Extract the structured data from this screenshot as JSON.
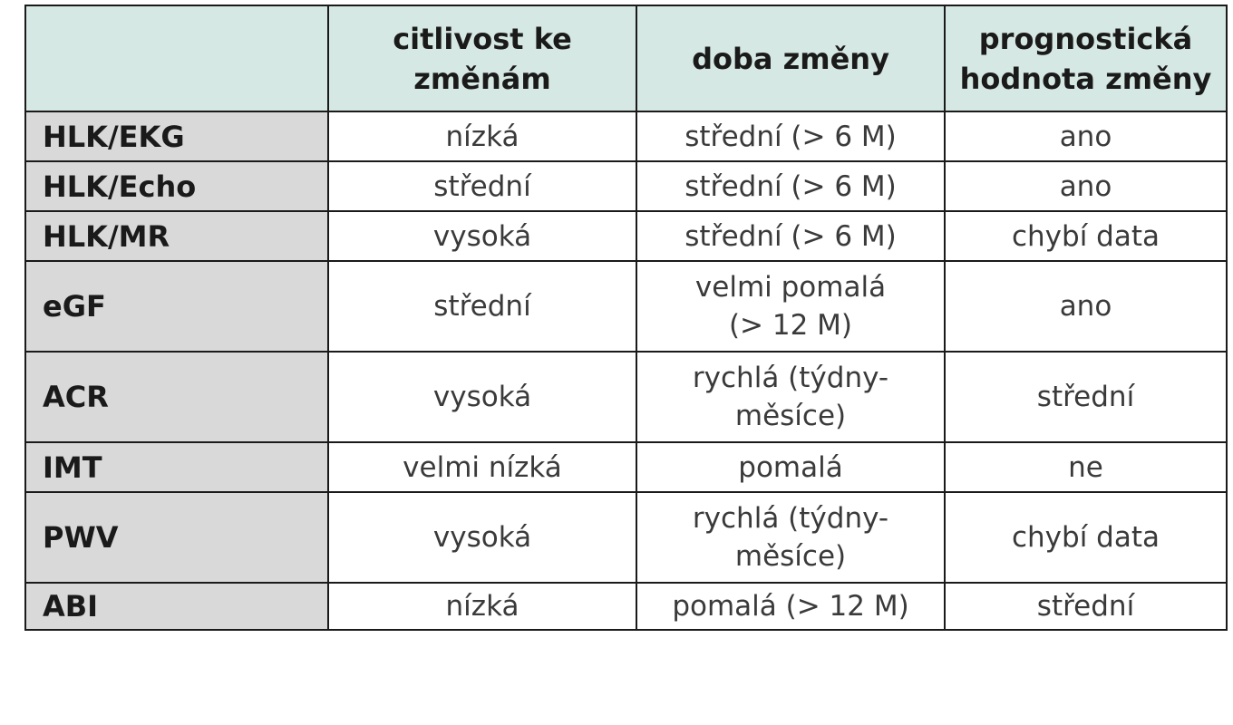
{
  "table": {
    "headers": [
      "",
      "citlivost ke změnám",
      "doba změny",
      "prognostická hodnota změny"
    ],
    "header_lines": [
      [],
      [
        "citlivost ke",
        "změnám"
      ],
      [
        "doba změny"
      ],
      [
        "prognostická",
        "hodnota změny"
      ]
    ],
    "rows": [
      {
        "label": "HLK/EKG",
        "citlivost": "nízká",
        "doba_lines": [
          "střední (> 6 M)"
        ],
        "prognoza": "ano"
      },
      {
        "label": "HLK/Echo",
        "citlivost": "střední",
        "doba_lines": [
          "střední (> 6 M)"
        ],
        "prognoza": "ano"
      },
      {
        "label": "HLK/MR",
        "citlivost": "vysoká",
        "doba_lines": [
          "střední (> 6 M)"
        ],
        "prognoza": "chybí data"
      },
      {
        "label": "eGF",
        "citlivost": "střední",
        "doba_lines": [
          "velmi pomalá",
          "(> 12 M)"
        ],
        "prognoza": "ano"
      },
      {
        "label": "ACR",
        "citlivost": "vysoká",
        "doba_lines": [
          "rychlá (týdny-",
          "měsíce)"
        ],
        "prognoza": "střední"
      },
      {
        "label": "IMT",
        "citlivost": "velmi nízká",
        "doba_lines": [
          "pomalá"
        ],
        "prognoza": "ne"
      },
      {
        "label": "PWV",
        "citlivost": "vysoká",
        "doba_lines": [
          "rychlá (týdny-",
          "měsíce)"
        ],
        "prognoza": "chybí data"
      },
      {
        "label": "ABI",
        "citlivost": "nízká",
        "doba_lines": [
          "pomalá (> 12 M)"
        ],
        "prognoza": "střední"
      }
    ]
  }
}
